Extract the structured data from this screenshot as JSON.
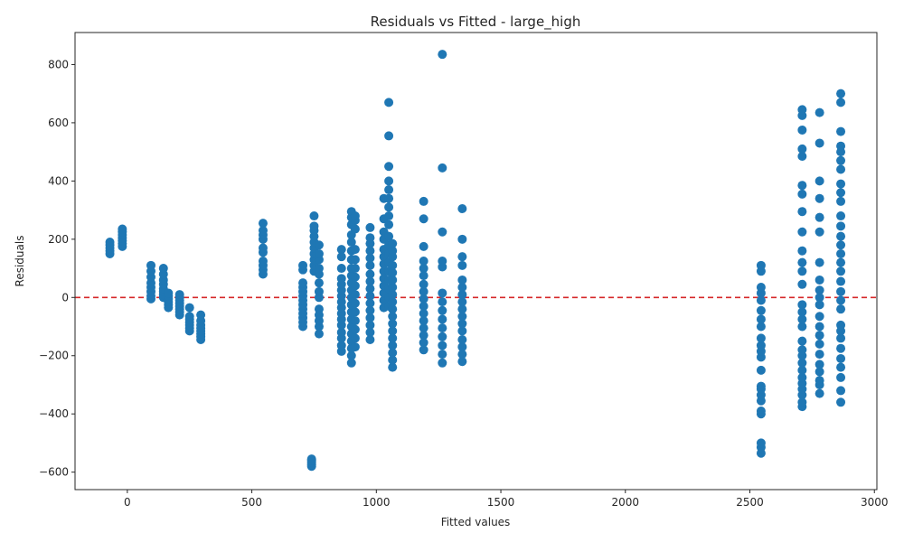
{
  "chart_data": {
    "type": "scatter",
    "title": "Residuals vs Fitted - large_high",
    "xlabel": "Fitted values",
    "ylabel": "Residuals",
    "xlim": [
      -210,
      3010
    ],
    "ylim": [
      -660,
      910
    ],
    "xticks": [
      0,
      500,
      1000,
      1500,
      2000,
      2500,
      3000
    ],
    "yticks": [
      -600,
      -400,
      -200,
      0,
      200,
      400,
      600,
      800
    ],
    "xtick_labels": [
      "0",
      "500",
      "1000",
      "1500",
      "2000",
      "2500",
      "3000"
    ],
    "ytick_labels": [
      "−600",
      "−400",
      "−200",
      "0",
      "200",
      "400",
      "600",
      "800"
    ],
    "grid": false,
    "point_color": "#1f77b4",
    "reference_line": {
      "y": 0,
      "color": "#d62728",
      "style": "dashed"
    },
    "clusters": [
      {
        "x": -70,
        "residuals": [
          150,
          160,
          170,
          180,
          190
        ]
      },
      {
        "x": -20,
        "residuals": [
          175,
          185,
          195,
          205,
          215,
          225,
          235
        ]
      },
      {
        "x": 95,
        "residuals": [
          -5,
          5,
          20,
          35,
          50,
          70,
          90,
          110
        ]
      },
      {
        "x": 145,
        "residuals": [
          0,
          10,
          20,
          30,
          45,
          60,
          80,
          100
        ]
      },
      {
        "x": 165,
        "residuals": [
          -35,
          -25,
          -15,
          -5,
          5,
          15
        ]
      },
      {
        "x": 210,
        "residuals": [
          -60,
          -50,
          -40,
          -30,
          -20,
          -10,
          0,
          10
        ]
      },
      {
        "x": 250,
        "residuals": [
          -115,
          -105,
          -95,
          -85,
          -75,
          -65,
          -35
        ]
      },
      {
        "x": 295,
        "residuals": [
          -145,
          -135,
          -125,
          -115,
          -105,
          -95,
          -80,
          -60
        ]
      },
      {
        "x": 545,
        "residuals": [
          80,
          95,
          110,
          125,
          155,
          170,
          200,
          215,
          230,
          255
        ]
      },
      {
        "x": 705,
        "residuals": [
          -100,
          -85,
          -70,
          -55,
          -40,
          -25,
          -10,
          5,
          20,
          35,
          50,
          95,
          110
        ]
      },
      {
        "x": 740,
        "residuals": [
          -580,
          -575,
          -570,
          -565,
          -560,
          -555
        ]
      },
      {
        "x": 750,
        "residuals": [
          90,
          110,
          130,
          150,
          170,
          190,
          210,
          230,
          245,
          280
        ]
      },
      {
        "x": 770,
        "residuals": [
          -125,
          -100,
          -80,
          -60,
          -40,
          0,
          20,
          50,
          80,
          100,
          130,
          150,
          180
        ]
      },
      {
        "x": 860,
        "residuals": [
          -185,
          -165,
          -140,
          -120,
          -95,
          -75,
          -55,
          -35,
          -15,
          5,
          25,
          45,
          65,
          100,
          140,
          165
        ]
      },
      {
        "x": 900,
        "residuals": [
          -225,
          -200,
          -175,
          -150,
          -125,
          -100,
          -75,
          -50,
          -25,
          0,
          25,
          50,
          75,
          100,
          130,
          160,
          190,
          215,
          250,
          275,
          295
        ]
      },
      {
        "x": 915,
        "residuals": [
          -170,
          -140,
          -110,
          -80,
          -50,
          -20,
          10,
          40,
          70,
          100,
          130,
          165,
          235,
          265,
          280
        ]
      },
      {
        "x": 975,
        "residuals": [
          -145,
          -120,
          -95,
          -70,
          -45,
          -20,
          5,
          30,
          55,
          80,
          110,
          135,
          160,
          185,
          205,
          240
        ]
      },
      {
        "x": 1030,
        "residuals": [
          -35,
          -10,
          15,
          40,
          65,
          90,
          115,
          140,
          165,
          200,
          225,
          270,
          340
        ]
      },
      {
        "x": 1050,
        "residuals": [
          -30,
          0,
          30,
          60,
          90,
          120,
          150,
          180,
          210,
          250,
          280,
          310,
          340,
          370,
          400,
          450,
          555,
          670
        ]
      },
      {
        "x": 1065,
        "residuals": [
          -240,
          -215,
          -190,
          -165,
          -140,
          -115,
          -90,
          -65,
          -40,
          -15,
          10,
          35,
          60,
          85,
          110,
          140,
          160,
          185
        ]
      },
      {
        "x": 1190,
        "residuals": [
          -180,
          -155,
          -130,
          -105,
          -80,
          -55,
          -30,
          -5,
          20,
          45,
          75,
          100,
          125,
          175,
          270,
          330
        ]
      },
      {
        "x": 1265,
        "residuals": [
          -225,
          -195,
          -165,
          -135,
          -105,
          -75,
          -45,
          -15,
          15,
          105,
          125,
          225,
          445,
          835
        ]
      },
      {
        "x": 1345,
        "residuals": [
          -220,
          -195,
          -170,
          -145,
          -115,
          -90,
          -65,
          -40,
          -15,
          10,
          35,
          60,
          110,
          140,
          200,
          305
        ]
      },
      {
        "x": 2545,
        "residuals": [
          -535,
          -515,
          -500,
          -400,
          -390,
          -355,
          -335,
          -315,
          -305,
          -250,
          -205,
          -185,
          -165,
          -140,
          -100,
          -75,
          -45,
          -10,
          15,
          35,
          90,
          110
        ]
      },
      {
        "x": 2710,
        "residuals": [
          -375,
          -360,
          -335,
          -315,
          -295,
          -275,
          -250,
          -225,
          -200,
          -180,
          -150,
          -100,
          -75,
          -50,
          -25,
          45,
          90,
          120,
          160,
          225,
          295,
          355,
          385,
          485,
          510,
          575,
          625,
          645
        ]
      },
      {
        "x": 2780,
        "residuals": [
          -330,
          -300,
          -285,
          -255,
          -230,
          -195,
          -160,
          -130,
          -100,
          -65,
          -25,
          0,
          25,
          60,
          120,
          225,
          275,
          340,
          400,
          530,
          635
        ]
      },
      {
        "x": 2865,
        "residuals": [
          -360,
          -320,
          -275,
          -240,
          -210,
          -175,
          -140,
          -115,
          -95,
          -40,
          -10,
          20,
          55,
          90,
          120,
          150,
          180,
          210,
          245,
          280,
          330,
          360,
          390,
          440,
          470,
          500,
          520,
          570,
          670,
          700
        ]
      }
    ]
  }
}
